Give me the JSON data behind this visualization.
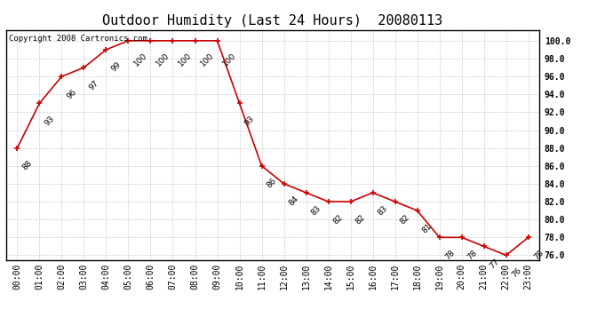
{
  "title": "Outdoor Humidity (Last 24 Hours)  20080113",
  "copyright_text": "Copyright 2008 Cartronics.com",
  "x_labels": [
    "00:00",
    "01:00",
    "02:00",
    "03:00",
    "04:00",
    "05:00",
    "06:00",
    "07:00",
    "08:00",
    "09:00",
    "10:00",
    "11:00",
    "12:00",
    "13:00",
    "14:00",
    "15:00",
    "16:00",
    "17:00",
    "18:00",
    "19:00",
    "20:00",
    "21:00",
    "22:00",
    "23:00"
  ],
  "y_values": [
    88,
    93,
    96,
    97,
    99,
    100,
    100,
    100,
    100,
    100,
    93,
    86,
    84,
    83,
    82,
    82,
    83,
    82,
    81,
    78,
    78,
    77,
    76,
    78
  ],
  "y_labels": [
    76.0,
    78.0,
    80.0,
    82.0,
    84.0,
    86.0,
    88.0,
    90.0,
    92.0,
    94.0,
    96.0,
    98.0,
    100.0
  ],
  "ylim": [
    75.5,
    101.2
  ],
  "line_color": "#cc0000",
  "marker_color": "#cc0000",
  "bg_color": "#ffffff",
  "grid_color": "#cccccc",
  "title_fontsize": 11,
  "label_fontsize": 7,
  "copyright_fontsize": 6.5,
  "annotation_fontsize": 6.5
}
